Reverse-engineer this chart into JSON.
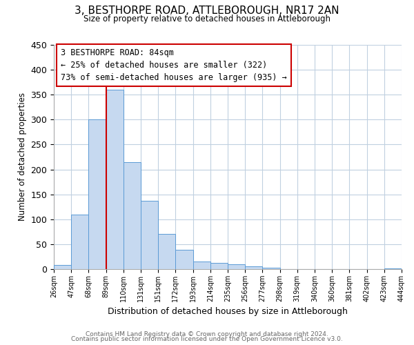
{
  "title": "3, BESTHORPE ROAD, ATTLEBOROUGH, NR17 2AN",
  "subtitle": "Size of property relative to detached houses in Attleborough",
  "xlabel": "Distribution of detached houses by size in Attleborough",
  "ylabel": "Number of detached properties",
  "footer_lines": [
    "Contains HM Land Registry data © Crown copyright and database right 2024.",
    "Contains public sector information licensed under the Open Government Licence v3.0."
  ],
  "bin_labels": [
    "26sqm",
    "47sqm",
    "68sqm",
    "89sqm",
    "110sqm",
    "131sqm",
    "151sqm",
    "172sqm",
    "193sqm",
    "214sqm",
    "235sqm",
    "256sqm",
    "277sqm",
    "298sqm",
    "319sqm",
    "340sqm",
    "360sqm",
    "381sqm",
    "402sqm",
    "423sqm",
    "444sqm"
  ],
  "bar_values": [
    8,
    110,
    300,
    360,
    215,
    137,
    70,
    39,
    15,
    13,
    10,
    5,
    3,
    0,
    0,
    0,
    0,
    0,
    0,
    2
  ],
  "bar_color": "#c6d9f0",
  "bar_edge_color": "#5b9bd5",
  "ylim": [
    0,
    450
  ],
  "yticks": [
    0,
    50,
    100,
    150,
    200,
    250,
    300,
    350,
    400,
    450
  ],
  "vline_x": 3,
  "vline_color": "#cc0000",
  "annotation_title": "3 BESTHORPE ROAD: 84sqm",
  "annotation_line1": "← 25% of detached houses are smaller (322)",
  "annotation_line2": "73% of semi-detached houses are larger (935) →",
  "background_color": "#ffffff",
  "grid_color": "#c0d0e0"
}
